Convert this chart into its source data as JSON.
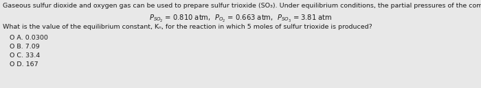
{
  "bg_color": "#e8e8e8",
  "text_color": "#1a1a1a",
  "line1": "Gaseous sulfur dioxide and oxygen gas can be used to prepare sulfur trioxide (SO₃). Under equilibrium conditions, the partial pressures of the compounds are",
  "line3": "What is the value of the equilibrium constant, Kₙ, for the reaction in which 5 moles of sulfur trioxide is produced?",
  "options": [
    "O A. 0.0300",
    "O B. 7.09",
    "O C. 33.4",
    "O D. 167"
  ],
  "font_size_main": 6.8,
  "font_size_center": 7.2,
  "font_size_options": 6.8
}
